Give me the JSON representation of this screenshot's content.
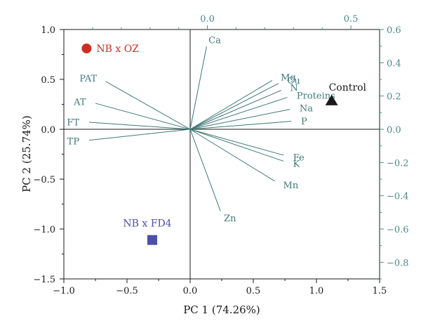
{
  "chart_data": {
    "type": "scatter",
    "subtype": "biplot",
    "title": "",
    "xlabel": "PC 1 (74.26%)",
    "ylabel": "PC 2 (25.74%)",
    "xlim": [
      -1.0,
      1.5
    ],
    "ylim": [
      -1.5,
      1.0
    ],
    "x_ticks": [
      "−1.0",
      "−0.5",
      "0.0",
      "0.5",
      "1.0",
      "1.5"
    ],
    "y_ticks": [
      "1.0",
      "0.5",
      "0.0",
      "−0.5",
      "−1.0",
      "−1.5"
    ],
    "top_axis": {
      "lim": [
        -0.5,
        0.6
      ],
      "ticks": [
        "0.0",
        "0.5"
      ]
    },
    "right_axis": {
      "lim": [
        -0.9,
        0.6
      ],
      "ticks": [
        "0.6",
        "0.4",
        "0.2",
        "0.0",
        "−0.2",
        "−0.4",
        "−0.6",
        "−0.8"
      ]
    },
    "grid": false,
    "points": [
      {
        "label": "NB x OZ",
        "x": -0.82,
        "y": 0.81,
        "marker": "circle",
        "color": "#cc2d1f"
      },
      {
        "label": "NB x FD4",
        "x": -0.3,
        "y": -1.11,
        "marker": "square",
        "color": "#4b4fa8"
      },
      {
        "label": "Control",
        "x": 1.12,
        "y": 0.29,
        "marker": "triangle",
        "color": "#1a1a1a"
      }
    ],
    "loadings": [
      {
        "label": "Ca",
        "x": 0.13,
        "y": 0.83
      },
      {
        "label": "Mg",
        "x": 0.65,
        "y": 0.49
      },
      {
        "label": "Cu",
        "x": 0.7,
        "y": 0.46
      },
      {
        "label": "N",
        "x": 0.72,
        "y": 0.39
      },
      {
        "label": "Proteins",
        "x": 0.77,
        "y": 0.32
      },
      {
        "label": "Na",
        "x": 0.79,
        "y": 0.2
      },
      {
        "label": "P",
        "x": 0.8,
        "y": 0.08
      },
      {
        "label": "Fe",
        "x": 0.74,
        "y": -0.26
      },
      {
        "label": "K",
        "x": 0.74,
        "y": -0.32
      },
      {
        "label": "Mn",
        "x": 0.67,
        "y": -0.52
      },
      {
        "label": "Zn",
        "x": 0.24,
        "y": -0.82
      },
      {
        "label": "PAT",
        "x": -0.67,
        "y": 0.48
      },
      {
        "label": "AT",
        "x": -0.75,
        "y": 0.26
      },
      {
        "label": "FT",
        "x": -0.8,
        "y": 0.07
      },
      {
        "label": "TP",
        "x": -0.8,
        "y": -0.11
      }
    ],
    "colors": {
      "axis": "#1a1a1a",
      "secondary_axis": "#4a8a8a",
      "loading": "#3f7878",
      "loading_label": "#3f7878"
    }
  }
}
